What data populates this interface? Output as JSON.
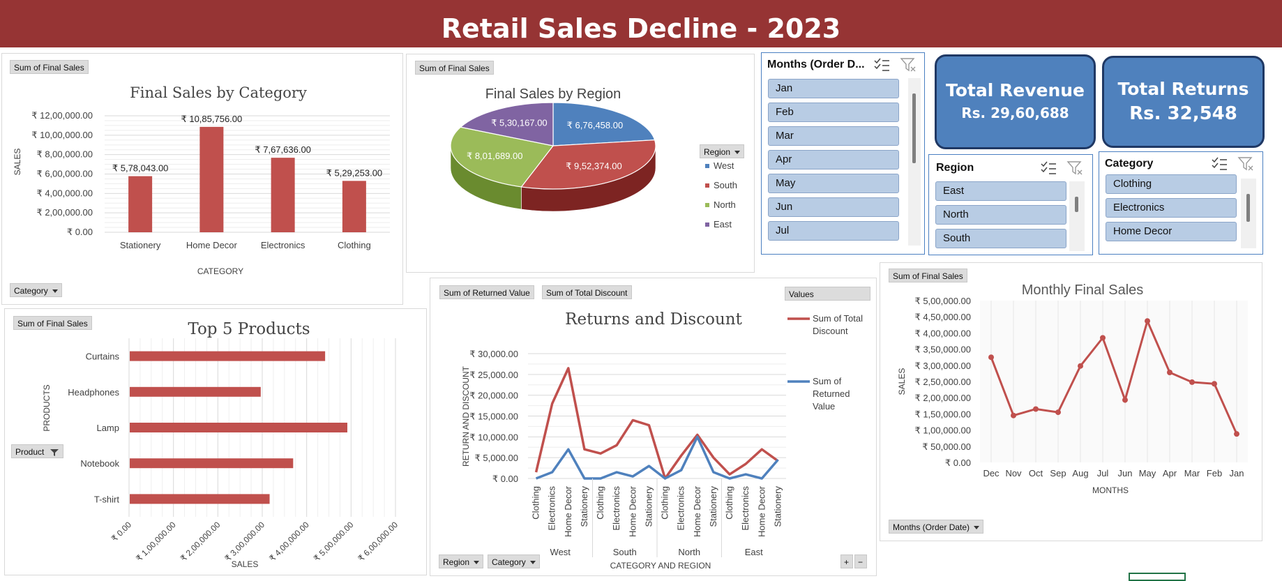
{
  "header": {
    "title": "Retail Sales Decline - 2023"
  },
  "panels": {
    "category": {
      "field_button": "Sum of Final Sales",
      "filter_button": "Category",
      "title": "Final Sales by Category",
      "xlabel": "CATEGORY",
      "ylabel": "SALES"
    },
    "region": {
      "field_button": "Sum of Final Sales",
      "title": "Final Sales by Region",
      "legend_button": "Region"
    },
    "top5": {
      "field_button": "Sum of Final Sales",
      "filter_button": "Product",
      "title": "Top 5 Products",
      "xlabel": "SALES",
      "ylabel": "PRODUCTS"
    },
    "returns": {
      "field_button_1": "Sum of Returned Value",
      "field_button_2": "Sum of Total Discount",
      "values_button": "Values",
      "title": "Returns and Discount",
      "xlabel": "CATEGORY AND REGION",
      "ylabel": "RETURN AND DISCOUNT",
      "filter_region": "Region",
      "filter_category": "Category",
      "expand": "+",
      "collapse": "−"
    },
    "monthly": {
      "field_button": "Sum of Final Sales",
      "title": "Monthly Final Sales",
      "xlabel": "MONTHS",
      "ylabel": "SALES",
      "filter_button": "Months (Order Date)"
    }
  },
  "slicers": {
    "months": {
      "title": "Months (Order D...",
      "items": [
        "Jan",
        "Feb",
        "Mar",
        "Apr",
        "May",
        "Jun",
        "Jul"
      ]
    },
    "region": {
      "title": "Region",
      "items": [
        "East",
        "North",
        "South"
      ]
    },
    "category": {
      "title": "Category",
      "items": [
        "Clothing",
        "Electronics",
        "Home Decor"
      ]
    }
  },
  "kpis": {
    "revenue": {
      "label": "Total Revenue",
      "value": "Rs. 29,60,688"
    },
    "returns": {
      "label": "Total Returns",
      "value": "Rs. 32,548"
    }
  },
  "colors": {
    "header": "#963434",
    "bar": "#c0504d",
    "line_red": "#c0504d",
    "line_blue": "#4f81bd",
    "kpi": "#4f81bd"
  },
  "chart_data": [
    {
      "type": "bar",
      "title": "Final Sales by Category",
      "categories": [
        "Stationery",
        "Home Decor",
        "Electronics",
        "Clothing"
      ],
      "values": [
        578043,
        1085756,
        767636,
        529253
      ],
      "data_labels": [
        "₹ 5,78,043.00",
        "₹ 10,85,756.00",
        "₹ 7,67,636.00",
        "₹ 5,29,253.00"
      ],
      "yticks": [
        "₹ 0.00",
        "₹ 2,00,000.00",
        "₹ 4,00,000.00",
        "₹ 6,00,000.00",
        "₹ 8,00,000.00",
        "₹ 10,00,000.00",
        "₹ 12,00,000.00"
      ],
      "ylim": [
        0,
        1200000
      ],
      "xlabel": "CATEGORY",
      "ylabel": "SALES"
    },
    {
      "type": "pie",
      "title": "Final Sales by Region",
      "labels": [
        "West",
        "South",
        "North",
        "East"
      ],
      "values": [
        676458,
        952374,
        801689,
        530167
      ],
      "data_labels": [
        "₹ 6,76,458.00",
        "₹ 9,52,374.00",
        "₹ 8,01,689.00",
        "₹ 5,30,167.00"
      ],
      "colors": [
        "#4f81bd",
        "#c0504d",
        "#9bbb59",
        "#8064a2"
      ],
      "legend": "right"
    },
    {
      "type": "bar",
      "orientation": "horizontal",
      "title": "Top 5 Products",
      "categories": [
        "Curtains",
        "Headphones",
        "Lamp",
        "Notebook",
        "T-shirt"
      ],
      "values": [
        440000,
        295000,
        490000,
        368000,
        315000
      ],
      "xticks": [
        "₹ 0.00",
        "₹ 1,00,000.00",
        "₹ 2,00,000.00",
        "₹ 3,00,000.00",
        "₹ 4,00,000.00",
        "₹ 5,00,000.00",
        "₹ 6,00,000.00"
      ],
      "xlim": [
        0,
        600000
      ],
      "xlabel": "SALES",
      "ylabel": "PRODUCTS"
    },
    {
      "type": "line",
      "title": "Returns and Discount",
      "categories": [
        "Clothing",
        "Electronics",
        "Home Decor",
        "Stationery",
        "Clothing",
        "Electronics",
        "Home Decor",
        "Stationery",
        "Clothing",
        "Electronics",
        "Home Decor",
        "Stationery",
        "Clothing",
        "Electronics",
        "Home Decor",
        "Stationery"
      ],
      "groups": [
        "West",
        "South",
        "North",
        "East"
      ],
      "series": [
        {
          "name": "Sum of Total Discount",
          "values": [
            1500,
            18000,
            26500,
            7000,
            6000,
            8000,
            14000,
            12800,
            0,
            5500,
            10500,
            5000,
            1000,
            3500,
            7000,
            4200
          ]
        },
        {
          "name": "Sum of Returned Value",
          "values": [
            0,
            1500,
            7000,
            0,
            0,
            1500,
            500,
            3000,
            0,
            2000,
            10000,
            1500,
            0,
            1000,
            0,
            4500
          ]
        }
      ],
      "yticks": [
        "₹ 0.00",
        "₹ 5,000.00",
        "₹ 10,000.00",
        "₹ 15,000.00",
        "₹ 20,000.00",
        "₹ 25,000.00",
        "₹ 30,000.00"
      ],
      "ylim": [
        0,
        30000
      ],
      "xlabel": "CATEGORY AND REGION",
      "ylabel": "RETURN AND DISCOUNT",
      "legend": "right"
    },
    {
      "type": "line",
      "title": "Monthly Final Sales",
      "categories": [
        "Dec",
        "Nov",
        "Oct",
        "Sep",
        "Aug",
        "Jul",
        "Jun",
        "May",
        "Apr",
        "Mar",
        "Feb",
        "Jan"
      ],
      "values": [
        325000,
        145000,
        165000,
        155000,
        298000,
        385000,
        193000,
        437000,
        278000,
        248000,
        243000,
        88000
      ],
      "yticks": [
        "₹ 0.00",
        "₹ 50,000.00",
        "₹ 1,00,000.00",
        "₹ 1,50,000.00",
        "₹ 2,00,000.00",
        "₹ 2,50,000.00",
        "₹ 3,00,000.00",
        "₹ 3,50,000.00",
        "₹ 4,00,000.00",
        "₹ 4,50,000.00",
        "₹ 5,00,000.00"
      ],
      "ylim": [
        0,
        500000
      ],
      "xlabel": "MONTHS",
      "ylabel": "SALES"
    }
  ]
}
